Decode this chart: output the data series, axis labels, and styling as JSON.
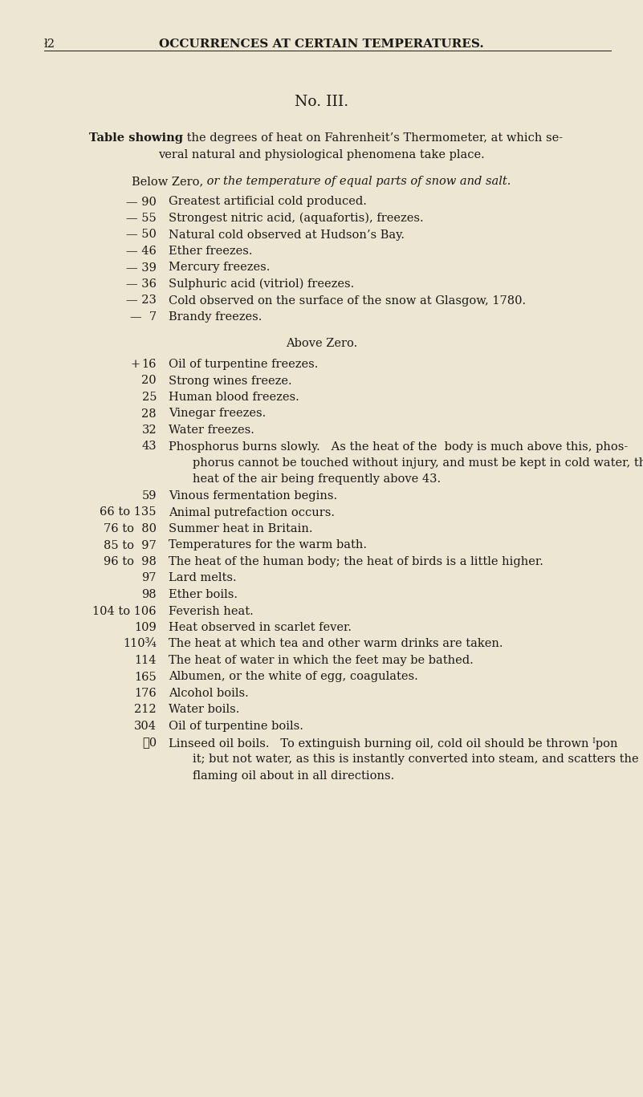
{
  "bg_color": "#ede6d3",
  "text_color": "#1c1a17",
  "figsize": [
    8.01,
    13.67
  ],
  "dpi": 100,
  "header_left": "ł2",
  "header_center": "OCCURRENCES AT CERTAIN TEMPERATURES.",
  "title": "No. III.",
  "subtitle_bold": "Table showing",
  "subtitle_rest1": " the degrees of heat on Fahrenheit’s Thermometer, at which se-",
  "subtitle_rest2": "veral natural and physiological phenomena take place.",
  "sec1_head_roman": "Below Zero,",
  "sec1_head_italic": " or the temperature of equal parts of snow and salt.",
  "sec1": [
    [
      "— 90",
      "Greatest artificial cold produced."
    ],
    [
      "— 55",
      "Strongest nitric acid, (aquafortis), freezes."
    ],
    [
      "— 50",
      "Natural cold observed at Hudson’s Bay."
    ],
    [
      "— 46",
      "Ether freezes."
    ],
    [
      "— 39",
      "Mercury freezes."
    ],
    [
      "— 36",
      "Sulphuric acid (vitriol) freezes."
    ],
    [
      "— 23",
      "Cold observed on the surface of the snow at Glasgow, 1780."
    ],
    [
      "—  7",
      "Brandy freezes."
    ]
  ],
  "sec2_head": "Above Zero.",
  "sec2": [
    [
      "+",
      "16",
      "Oil of turpentine freezes.",
      false
    ],
    [
      " ",
      "20",
      "Strong wines freeze.",
      false
    ],
    [
      " ",
      "25",
      "Human blood freezes.",
      false
    ],
    [
      " ",
      "28",
      "Vinegar freezes.",
      false
    ],
    [
      " ",
      "32",
      "Water freezes.",
      false
    ],
    [
      " ",
      "43",
      "Phosphorus burns slowly.   As the heat of the  body is much above this, phos-",
      false
    ],
    [
      " ",
      "",
      "phorus cannot be touched without injury, and must be kept in cold water, the",
      true
    ],
    [
      " ",
      "",
      "heat of the air being frequently above 43.",
      true
    ],
    [
      " ",
      "59",
      "Vinous fermentation begins.",
      false
    ],
    [
      " ",
      "66 to 135",
      "Animal putrefaction occurs.",
      false
    ],
    [
      " ",
      "76 to  80",
      "Summer heat in Britain.",
      false
    ],
    [
      " ",
      "85 to  97",
      "Temperatures for the warm bath.",
      false
    ],
    [
      " ",
      "96 to  98",
      "The heat of the human body; the heat of birds is a little higher.",
      false
    ],
    [
      " ",
      "97",
      "Lard melts.",
      false
    ],
    [
      " ",
      "98",
      "Ether boils.",
      false
    ],
    [
      " ",
      "104 to 106",
      "Feverish heat.",
      false
    ],
    [
      " ",
      "109",
      "Heat observed in scarlet fever.",
      false
    ],
    [
      " ",
      "110¾",
      "The heat at which tea and other warm drinks are taken.",
      false
    ],
    [
      " ",
      "114",
      "The heat of water in which the feet may be bathed.",
      false
    ],
    [
      " ",
      "165",
      "Albumen, or the white of egg, coagulates.",
      false
    ],
    [
      " ",
      "176",
      "Alcohol boils.",
      false
    ],
    [
      " ",
      "212",
      "Water boils.",
      false
    ],
    [
      " ",
      "304",
      "Oil of turpentine boils.",
      false
    ],
    [
      " ",
      "㔹0",
      "Linseed oil boils.   To extinguish burning oil, cold oil should be thrown ᴵpon",
      false
    ],
    [
      " ",
      "",
      "it; but not water, as this is instantly converted into steam, and scatters the",
      true
    ],
    [
      " ",
      "",
      "flaming oil about in all directions.",
      true
    ]
  ]
}
